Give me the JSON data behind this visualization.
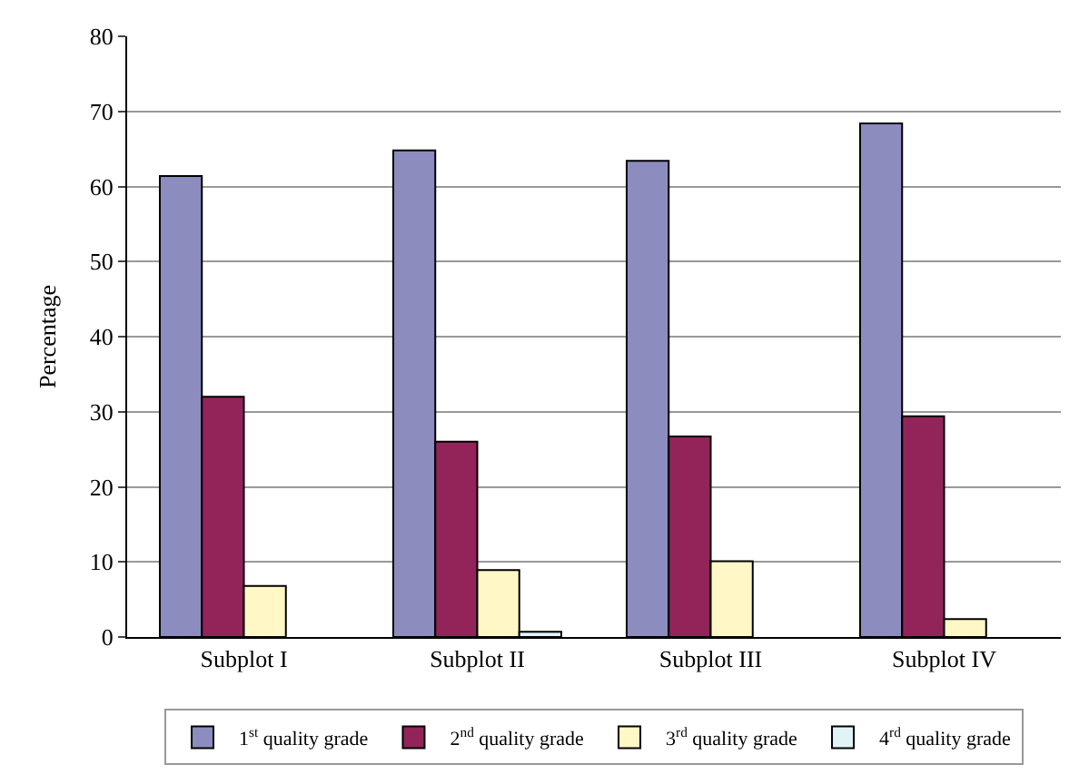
{
  "chart_data": {
    "type": "bar",
    "ylabel": "Percentage",
    "categories": [
      "Subplot I",
      "Subplot II",
      "Subplot III",
      "Subplot IV"
    ],
    "series": [
      {
        "name": "1$^{st}$ quality grade",
        "color": "#8c8cbf",
        "values": [
          61.4,
          64.8,
          63.4,
          68.4
        ]
      },
      {
        "name": "2$^{nd}$ quality grade",
        "color": "#93245a",
        "values": [
          32.0,
          26.0,
          26.7,
          29.4
        ]
      },
      {
        "name": "3$^{rd}$ quality grade",
        "color": "#fff8c6",
        "values": [
          6.8,
          8.9,
          10.1,
          2.4
        ]
      },
      {
        "name": "4$^{rd}$ quality grade",
        "color": "#e0f4f8",
        "values": [
          null,
          0.7,
          null,
          null
        ]
      }
    ],
    "ylim": [
      0,
      80
    ],
    "yticks": [
      0,
      10,
      20,
      30,
      40,
      50,
      60,
      70,
      80
    ],
    "grid": "y",
    "legend": "bottom"
  }
}
